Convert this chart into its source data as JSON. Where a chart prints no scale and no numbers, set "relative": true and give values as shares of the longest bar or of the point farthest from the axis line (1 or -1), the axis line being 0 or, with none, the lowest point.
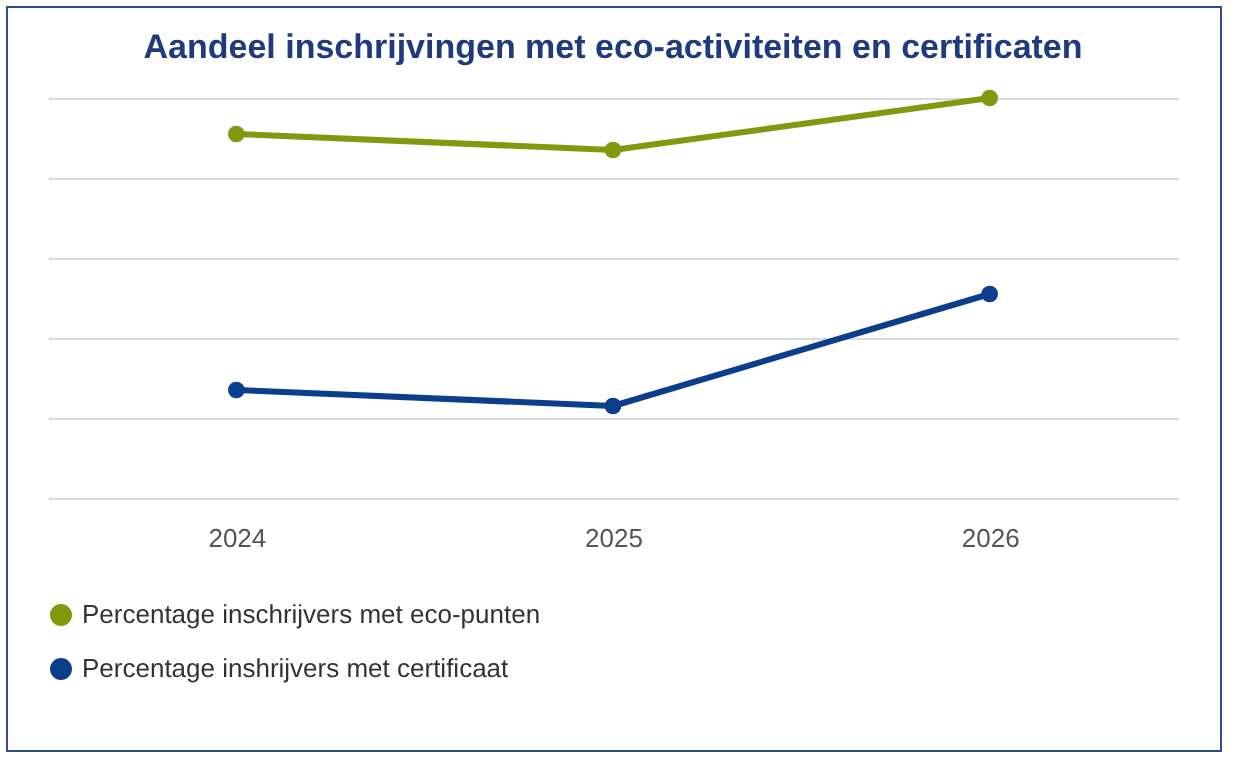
{
  "chart_data": {
    "type": "line",
    "title": "Aandeel inschrijvingen met eco-activiteiten en certificaten",
    "categories": [
      "2024",
      "2025",
      "2026"
    ],
    "relative": true,
    "grid": "y",
    "legend": "bottom",
    "marker": "circle",
    "line_style": "solid",
    "series": [
      {
        "name": "Percentage inschrijvers met eco-punten",
        "color": "#7f9a0f",
        "values": [
          0.91,
          0.87,
          1
        ]
      },
      {
        "name": "Percentage inshrijvers met certificaat",
        "color": "#0b3f8c",
        "values": [
          0.27,
          0.23,
          0.51
        ]
      }
    ]
  }
}
